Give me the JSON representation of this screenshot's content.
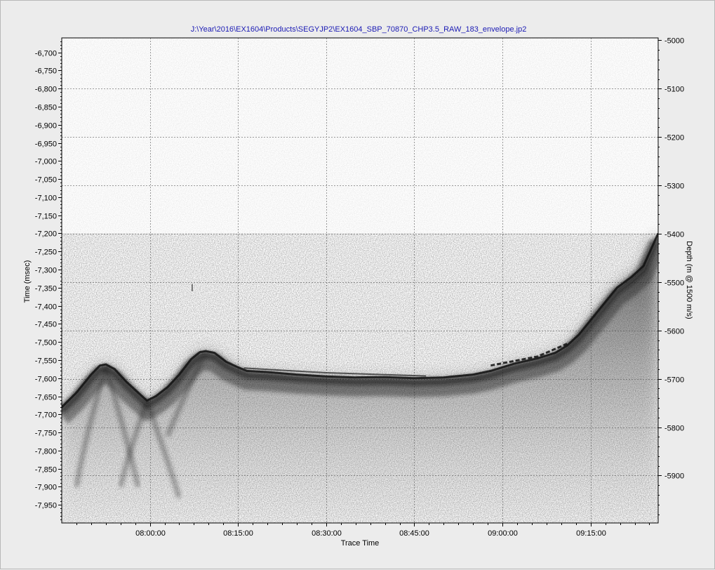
{
  "chart_data": {
    "type": "heatmap",
    "title": "J:\\Year\\2016\\EX1604\\Products\\SEGYJP2\\EX1604_SBP_70870_CHP3.5_RAW_183_envelope.jp2",
    "xlabel": "Trace Time",
    "ylabel": "Time (msec)",
    "y2label": "Depth (m @ 1500 m/s)",
    "grid": true,
    "xlim_minutes": [
      465,
      566.5
    ],
    "x_ticks": [
      {
        "label": "08:00:00",
        "minutes": 480
      },
      {
        "label": "08:15:00",
        "minutes": 495
      },
      {
        "label": "08:30:00",
        "minutes": 510
      },
      {
        "label": "08:45:00",
        "minutes": 525
      },
      {
        "label": "09:00:00",
        "minutes": 540
      },
      {
        "label": "09:15:00",
        "minutes": 555
      }
    ],
    "ylim": [
      -6660,
      -8000
    ],
    "y_ticks": [
      -6700,
      -6750,
      -6800,
      -6850,
      -6900,
      -6950,
      -7000,
      -7050,
      -7100,
      -7150,
      -7200,
      -7250,
      -7300,
      -7350,
      -7400,
      -7450,
      -7500,
      -7550,
      -7600,
      -7650,
      -7700,
      -7750,
      -7800,
      -7850,
      -7900,
      -7950
    ],
    "y_tick_labels": [
      "-6,700",
      "-6,750",
      "-6,800",
      "-6,850",
      "-6,900",
      "-6,950",
      "-7,000",
      "-7,050",
      "-7,100",
      "-7,150",
      "-7,200",
      "-7,250",
      "-7,300",
      "-7,350",
      "-7,400",
      "-7,450",
      "-7,500",
      "-7,550",
      "-7,600",
      "-7,650",
      "-7,700",
      "-7,750",
      "-7,800",
      "-7,850",
      "-7,900",
      "-7,950"
    ],
    "y2lim": [
      -4995,
      -5998
    ],
    "y2_ticks": [
      -5000,
      -5100,
      -5200,
      -5300,
      -5400,
      -5500,
      -5600,
      -5700,
      -5800,
      -5900
    ],
    "seafloor_reflector": [
      {
        "t": 465.0,
        "ms": -7680
      },
      {
        "t": 467.5,
        "ms": -7640
      },
      {
        "t": 470.0,
        "ms": -7590
      },
      {
        "t": 471.5,
        "ms": -7565
      },
      {
        "t": 472.5,
        "ms": -7562
      },
      {
        "t": 474.0,
        "ms": -7575
      },
      {
        "t": 476.0,
        "ms": -7610
      },
      {
        "t": 478.0,
        "ms": -7640
      },
      {
        "t": 479.5,
        "ms": -7662
      },
      {
        "t": 481.0,
        "ms": -7650
      },
      {
        "t": 483.0,
        "ms": -7625
      },
      {
        "t": 485.0,
        "ms": -7590
      },
      {
        "t": 487.0,
        "ms": -7548
      },
      {
        "t": 488.5,
        "ms": -7528
      },
      {
        "t": 489.5,
        "ms": -7525
      },
      {
        "t": 491.0,
        "ms": -7530
      },
      {
        "t": 493.0,
        "ms": -7555
      },
      {
        "t": 495.0,
        "ms": -7570
      },
      {
        "t": 496.5,
        "ms": -7580
      },
      {
        "t": 500.0,
        "ms": -7583
      },
      {
        "t": 505.0,
        "ms": -7590
      },
      {
        "t": 510.0,
        "ms": -7595
      },
      {
        "t": 515.0,
        "ms": -7598
      },
      {
        "t": 520.0,
        "ms": -7597
      },
      {
        "t": 525.0,
        "ms": -7600
      },
      {
        "t": 530.0,
        "ms": -7598
      },
      {
        "t": 535.0,
        "ms": -7590
      },
      {
        "t": 538.0,
        "ms": -7580
      },
      {
        "t": 542.0,
        "ms": -7560
      },
      {
        "t": 546.0,
        "ms": -7545
      },
      {
        "t": 549.0,
        "ms": -7530
      },
      {
        "t": 551.0,
        "ms": -7510
      },
      {
        "t": 553.0,
        "ms": -7480
      },
      {
        "t": 555.0,
        "ms": -7440
      },
      {
        "t": 557.0,
        "ms": -7400
      },
      {
        "t": 559.5,
        "ms": -7350
      },
      {
        "t": 562.0,
        "ms": -7320
      },
      {
        "t": 564.0,
        "ms": -7290
      },
      {
        "t": 566.5,
        "ms": -7200
      }
    ]
  }
}
